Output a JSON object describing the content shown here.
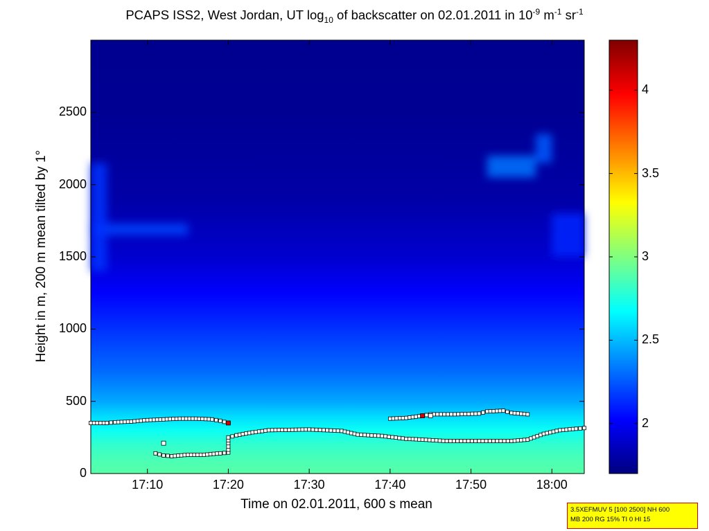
{
  "title": {
    "before_log": "PCAPS ISS2, West Jordan, UT log",
    "log_sub": "10",
    "mid": " of backscatter on 02.01.2011 in 10",
    "exp_sup": "-9",
    "unit1": " m",
    "unit1_sup": "-1",
    "unit2": " sr",
    "unit2_sup": "-1"
  },
  "chart_data": {
    "type": "heatmap",
    "colormap": "jet",
    "xlabel": "Time on 02.01.2011, 600 s mean",
    "ylabel": "Height in m, 200 m mean tilted by 1°",
    "x_ticks": [
      "17:10",
      "17:20",
      "17:30",
      "17:40",
      "17:50",
      "18:00"
    ],
    "y_ticks": [
      "0",
      "500",
      "1000",
      "1500",
      "2000",
      "2500"
    ],
    "xlim": [
      "17:03",
      "18:04"
    ],
    "ylim": [
      0,
      3000
    ],
    "colorbar": {
      "ticks": [
        "2",
        "2.5",
        "3",
        "3.5",
        "4"
      ],
      "clim": [
        1.7,
        4.3
      ]
    },
    "background_profile": [
      {
        "height": 0,
        "value": 2.9
      },
      {
        "height": 100,
        "value": 2.86
      },
      {
        "height": 200,
        "value": 2.8
      },
      {
        "height": 300,
        "value": 2.7
      },
      {
        "height": 400,
        "value": 2.58
      },
      {
        "height": 500,
        "value": 2.45
      },
      {
        "height": 700,
        "value": 2.3
      },
      {
        "height": 1000,
        "value": 2.15
      },
      {
        "height": 1250,
        "value": 2.02
      },
      {
        "height": 1500,
        "value": 1.9
      },
      {
        "height": 1900,
        "value": 1.8
      },
      {
        "height": 2500,
        "value": 1.75
      },
      {
        "height": 3000,
        "value": 1.74
      }
    ],
    "features": [
      {
        "t": "17:03",
        "t_end": "17:15",
        "h": 1650,
        "h_end": 1730,
        "value": 2.2
      },
      {
        "t": "17:03",
        "t_end": "17:05",
        "h": 1400,
        "h_end": 2150,
        "value": 2.15
      },
      {
        "t": "17:52",
        "t_end": "17:58",
        "h": 2050,
        "h_end": 2200,
        "value": 2.32
      },
      {
        "t": "17:58",
        "t_end": "18:00",
        "h": 2150,
        "h_end": 2350,
        "value": 2.26
      },
      {
        "t": "18:00",
        "t_end": "18:04",
        "h": 1500,
        "h_end": 1800,
        "value": 2.12
      }
    ],
    "series": [
      {
        "name": "layer-upper",
        "marker": "square",
        "points": [
          {
            "t": "17:03",
            "h": 350
          },
          {
            "t": "17:05",
            "h": 350
          },
          {
            "t": "17:06",
            "h": 355
          },
          {
            "t": "17:08",
            "h": 360
          },
          {
            "t": "17:10",
            "h": 370
          },
          {
            "t": "17:12",
            "h": 375
          },
          {
            "t": "17:14",
            "h": 380
          },
          {
            "t": "17:16",
            "h": 380
          },
          {
            "t": "17:18",
            "h": 375
          },
          {
            "t": "17:19",
            "h": 365
          },
          {
            "t": "17:20",
            "h": 350
          }
        ]
      },
      {
        "name": "layer-lower",
        "marker": "square",
        "points": [
          {
            "t": "17:11",
            "h": 140
          },
          {
            "t": "17:12",
            "h": 125
          },
          {
            "t": "17:13",
            "h": 120
          },
          {
            "t": "17:15",
            "h": 130
          },
          {
            "t": "17:17",
            "h": 130
          },
          {
            "t": "17:19",
            "h": 140
          },
          {
            "t": "17:20",
            "h": 145
          },
          {
            "t": "17:20",
            "h": 165
          },
          {
            "t": "17:20",
            "h": 210
          },
          {
            "t": "17:20",
            "h": 250
          },
          {
            "t": "17:21",
            "h": 265
          },
          {
            "t": "17:23",
            "h": 285
          },
          {
            "t": "17:25",
            "h": 300
          },
          {
            "t": "17:30",
            "h": 305
          },
          {
            "t": "17:34",
            "h": 295
          },
          {
            "t": "17:36",
            "h": 270
          },
          {
            "t": "17:39",
            "h": 260
          },
          {
            "t": "17:42",
            "h": 240
          },
          {
            "t": "17:44",
            "h": 235
          },
          {
            "t": "17:47",
            "h": 225
          },
          {
            "t": "17:51",
            "h": 225
          },
          {
            "t": "17:55",
            "h": 225
          },
          {
            "t": "17:57",
            "h": 235
          },
          {
            "t": "17:59",
            "h": 275
          },
          {
            "t": "18:01",
            "h": 300
          },
          {
            "t": "18:03",
            "h": 310
          },
          {
            "t": "18:04",
            "h": 315
          }
        ]
      },
      {
        "name": "layer-right",
        "marker": "square",
        "points": [
          {
            "t": "17:40",
            "h": 380
          },
          {
            "t": "17:42",
            "h": 385
          },
          {
            "t": "17:44",
            "h": 400
          },
          {
            "t": "17:45",
            "h": 410
          },
          {
            "t": "17:48",
            "h": 410
          },
          {
            "t": "17:51",
            "h": 415
          },
          {
            "t": "17:52",
            "h": 430
          },
          {
            "t": "17:54",
            "h": 435
          },
          {
            "t": "17:55",
            "h": 420
          },
          {
            "t": "17:57",
            "h": 410
          }
        ]
      }
    ],
    "highlighted_points": [
      {
        "t": "17:12",
        "h": 210,
        "color": "#ffffff"
      },
      {
        "t": "17:20",
        "h": 350,
        "color": "#d40000"
      },
      {
        "t": "17:44",
        "h": 400,
        "color": "#d40000"
      },
      {
        "t": "17:45",
        "h": 400,
        "color": "#ffffff"
      }
    ]
  },
  "info_box": {
    "line1": "3.5XEFMUV 5 [100 2500] NH 600",
    "line2": "MB 200 RG 15% TI 0 HI 15"
  },
  "colors": {
    "marker_fill": "#ffffff",
    "marker_edge": "#000000",
    "info_bg": "#ffff00",
    "info_border": "#d40000"
  }
}
